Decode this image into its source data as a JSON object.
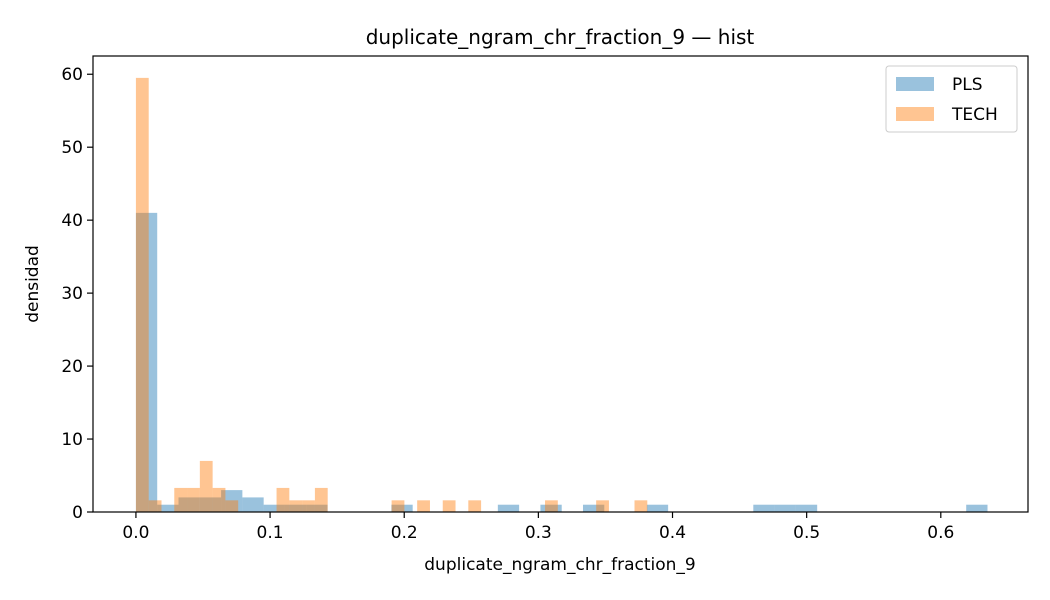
{
  "chart_data": {
    "type": "histogram",
    "title": "duplicate_ngram_chr_fraction_9 — hist",
    "xlabel": "duplicate_ngram_chr_fraction_9",
    "ylabel": "densidad",
    "xlim": [
      -0.032,
      0.665
    ],
    "ylim": [
      0,
      62.5
    ],
    "xticks": [
      0.0,
      0.1,
      0.2,
      0.3,
      0.4,
      0.5,
      0.6
    ],
    "xtick_labels": [
      "0.0",
      "0.1",
      "0.2",
      "0.3",
      "0.4",
      "0.5",
      "0.6"
    ],
    "yticks": [
      0,
      10,
      20,
      30,
      40,
      50,
      60
    ],
    "ytick_labels": [
      "0",
      "10",
      "20",
      "30",
      "40",
      "50",
      "60"
    ],
    "grid": false,
    "legend_position": "top-right",
    "series": [
      {
        "name": "PLS",
        "color": "#1f77b4",
        "opacity": 0.45,
        "bin_start": 0.0,
        "bin_width": 0.01587,
        "values": [
          41,
          1,
          2,
          2,
          3,
          2,
          1,
          1,
          1,
          0,
          0,
          0,
          1,
          0,
          0,
          0,
          0,
          1,
          0,
          1,
          0,
          1,
          0,
          0,
          1,
          0,
          0,
          0,
          0,
          1,
          1,
          1,
          0,
          0,
          0,
          0,
          0,
          0,
          0,
          1
        ]
      },
      {
        "name": "TECH",
        "color": "#ff7f0e",
        "opacity": 0.45,
        "bin_start": 0.0,
        "bin_width": 0.00953,
        "values": [
          59.5,
          1.6,
          0,
          3.3,
          3.3,
          7,
          3.3,
          1.6,
          0,
          0,
          0,
          3.3,
          1.6,
          1.6,
          3.3,
          0,
          0,
          0,
          0,
          0,
          1.6,
          0,
          1.6,
          0,
          1.6,
          0,
          1.6,
          0,
          0,
          0,
          0,
          0,
          1.6,
          0,
          0,
          0,
          1.6,
          0,
          0,
          1.6
        ]
      }
    ]
  }
}
